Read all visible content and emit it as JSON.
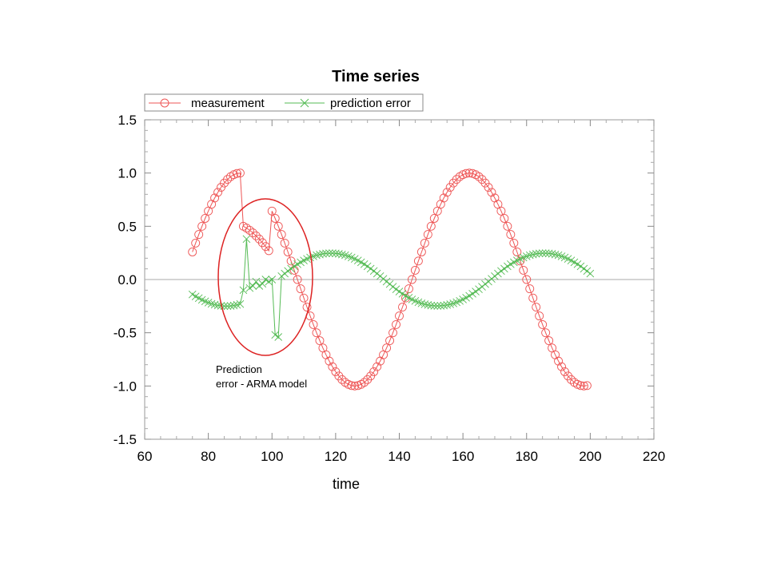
{
  "chart_data": {
    "type": "line",
    "title": "Time series",
    "xlabel": "time",
    "ylabel": "",
    "xlim": [
      60,
      220
    ],
    "ylim": [
      -1.5,
      1.5
    ],
    "xticks": [
      60,
      80,
      100,
      120,
      140,
      160,
      180,
      200,
      220
    ],
    "xtick_labels": [
      "60",
      "80",
      "100",
      "120",
      "140",
      "160",
      "180",
      "200",
      "220"
    ],
    "yticks": [
      -1.5,
      -1.0,
      -0.5,
      0.0,
      0.5,
      1.0,
      1.5
    ],
    "ytick_labels": [
      "-1.5",
      "-1.0",
      "-0.5",
      "0.0",
      "0.5",
      "1.0",
      "1.5"
    ],
    "grid": false,
    "zero_line": true,
    "legend_position": "top-left",
    "series": [
      {
        "name": "measurement",
        "color": "#ee5555",
        "marker": "circle",
        "x": [
          75,
          76,
          77,
          78,
          79,
          80,
          81,
          82,
          83,
          84,
          85,
          86,
          87,
          88,
          89,
          90,
          91,
          92,
          93,
          94,
          95,
          96,
          97,
          98,
          99,
          100,
          101,
          102,
          103,
          104,
          105,
          106,
          107,
          108,
          109,
          110,
          111,
          112,
          113,
          114,
          115,
          116,
          117,
          118,
          119,
          120,
          121,
          122,
          123,
          124,
          125,
          126,
          127,
          128,
          129,
          130,
          131,
          132,
          133,
          134,
          135,
          136,
          137,
          138,
          139,
          140,
          141,
          142,
          143,
          144,
          145,
          146,
          147,
          148,
          149,
          150,
          151,
          152,
          153,
          154,
          155,
          156,
          157,
          158,
          159,
          160,
          161,
          162,
          163,
          164,
          165,
          166,
          167,
          168,
          169,
          170,
          171,
          172,
          173,
          174,
          175,
          176,
          177,
          178,
          179,
          180,
          181,
          182,
          183,
          184,
          185,
          186,
          187,
          188,
          189,
          190,
          191,
          192,
          193,
          194,
          195,
          196,
          197,
          198,
          199
        ],
        "y": [
          0.259,
          0.342,
          0.423,
          0.5,
          0.574,
          0.643,
          0.707,
          0.766,
          0.819,
          0.866,
          0.906,
          0.94,
          0.966,
          0.985,
          0.996,
          1.0,
          0.5,
          0.483,
          0.462,
          0.438,
          0.41,
          0.38,
          0.346,
          0.31,
          0.271,
          0.643,
          0.574,
          0.5,
          0.423,
          0.342,
          0.259,
          0.174,
          0.087,
          0.0,
          -0.087,
          -0.174,
          -0.259,
          -0.342,
          -0.423,
          -0.5,
          -0.574,
          -0.643,
          -0.707,
          -0.766,
          -0.819,
          -0.866,
          -0.906,
          -0.94,
          -0.966,
          -0.985,
          -0.996,
          -1.0,
          -0.996,
          -0.985,
          -0.966,
          -0.94,
          -0.906,
          -0.866,
          -0.819,
          -0.766,
          -0.707,
          -0.643,
          -0.574,
          -0.5,
          -0.423,
          -0.342,
          -0.259,
          -0.174,
          -0.087,
          0.0,
          0.087,
          0.174,
          0.259,
          0.342,
          0.423,
          0.5,
          0.574,
          0.643,
          0.707,
          0.766,
          0.819,
          0.866,
          0.906,
          0.94,
          0.966,
          0.985,
          0.996,
          1.0,
          0.996,
          0.985,
          0.966,
          0.94,
          0.906,
          0.866,
          0.819,
          0.766,
          0.707,
          0.643,
          0.574,
          0.5,
          0.423,
          0.342,
          0.259,
          0.174,
          0.087,
          0.0,
          -0.087,
          -0.174,
          -0.259,
          -0.342,
          -0.423,
          -0.5,
          -0.574,
          -0.643,
          -0.707,
          -0.766,
          -0.819,
          -0.866,
          -0.906,
          -0.94,
          -0.966,
          -0.985,
          -0.996,
          -1.0,
          -0.996
        ]
      },
      {
        "name": "prediction error",
        "color": "#55bb55",
        "marker": "cross",
        "x": [
          75,
          76,
          77,
          78,
          79,
          80,
          81,
          82,
          83,
          84,
          85,
          86,
          87,
          88,
          89,
          90,
          91,
          92,
          93,
          94,
          95,
          96,
          97,
          98,
          99,
          100,
          101,
          102,
          103,
          104,
          105,
          106,
          107,
          108,
          109,
          110,
          111,
          112,
          113,
          114,
          115,
          116,
          117,
          118,
          119,
          120,
          121,
          122,
          123,
          124,
          125,
          126,
          127,
          128,
          129,
          130,
          131,
          132,
          133,
          134,
          135,
          136,
          137,
          138,
          139,
          140,
          141,
          142,
          143,
          144,
          145,
          146,
          147,
          148,
          149,
          150,
          151,
          152,
          153,
          154,
          155,
          156,
          157,
          158,
          159,
          160,
          161,
          162,
          163,
          164,
          165,
          166,
          167,
          168,
          169,
          170,
          171,
          172,
          173,
          174,
          175,
          176,
          177,
          178,
          179,
          180,
          181,
          182,
          183,
          184,
          185,
          186,
          187,
          188,
          189,
          190,
          191,
          192,
          193,
          194,
          195,
          196,
          197,
          198,
          199,
          200
        ],
        "y": [
          -0.14,
          -0.159,
          -0.175,
          -0.191,
          -0.205,
          -0.217,
          -0.228,
          -0.236,
          -0.243,
          -0.247,
          -0.25,
          -0.25,
          -0.248,
          -0.244,
          -0.238,
          -0.23,
          -0.1,
          0.38,
          -0.08,
          -0.06,
          -0.02,
          -0.06,
          -0.04,
          0.0,
          -0.02,
          0.0,
          -0.52,
          -0.54,
          0.031,
          0.056,
          0.08,
          0.102,
          0.124,
          0.144,
          0.162,
          0.179,
          0.194,
          0.207,
          0.218,
          0.228,
          0.235,
          0.241,
          0.245,
          0.247,
          0.247,
          0.245,
          0.241,
          0.235,
          0.228,
          0.218,
          0.207,
          0.194,
          0.179,
          0.162,
          0.144,
          0.124,
          0.102,
          0.08,
          0.056,
          0.031,
          0.006,
          -0.019,
          -0.043,
          -0.068,
          -0.091,
          -0.113,
          -0.134,
          -0.153,
          -0.171,
          -0.187,
          -0.201,
          -0.213,
          -0.224,
          -0.232,
          -0.239,
          -0.244,
          -0.247,
          -0.248,
          -0.247,
          -0.244,
          -0.239,
          -0.232,
          -0.224,
          -0.213,
          -0.201,
          -0.187,
          -0.171,
          -0.153,
          -0.134,
          -0.113,
          -0.091,
          -0.068,
          -0.043,
          -0.019,
          0.006,
          0.031,
          0.056,
          0.08,
          0.102,
          0.124,
          0.144,
          0.162,
          0.179,
          0.194,
          0.207,
          0.218,
          0.228,
          0.235,
          0.241,
          0.245,
          0.247,
          0.247,
          0.245,
          0.241,
          0.235,
          0.228,
          0.218,
          0.207,
          0.194,
          0.179,
          0.162,
          0.144,
          0.124,
          0.102,
          0.08,
          0.056
        ]
      }
    ],
    "annotation": {
      "line1": "Prediction",
      "line2": "error - ARMA model",
      "ellipse_color": "#dd2222"
    }
  }
}
